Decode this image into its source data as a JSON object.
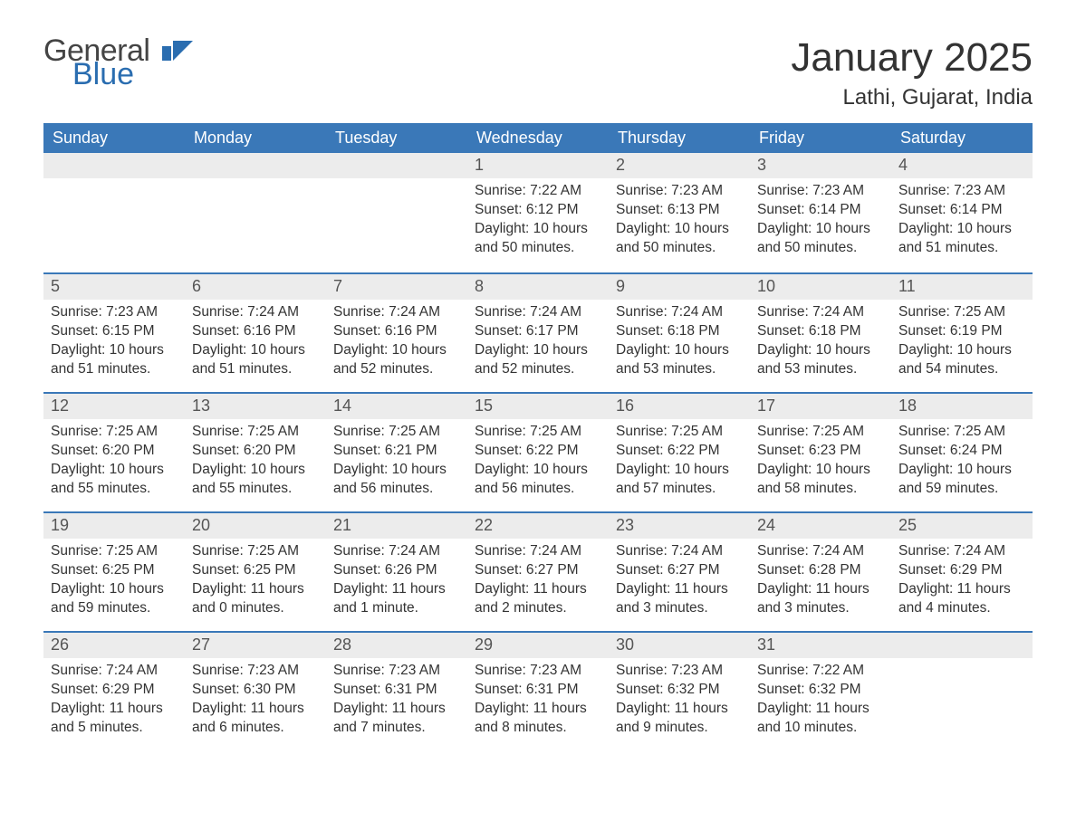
{
  "brand": {
    "line1": "General",
    "line2": "Blue",
    "icon_color": "#2a6db0",
    "text_gray": "#444444"
  },
  "title": "January 2025",
  "location": "Lathi, Gujarat, India",
  "colors": {
    "header_bg": "#3a78b8",
    "header_text": "#ffffff",
    "daybar_bg": "#ececec",
    "daybar_border": "#3a78b8",
    "body_text": "#333333",
    "daynum_text": "#555555",
    "page_bg": "#ffffff"
  },
  "weekdays": [
    "Sunday",
    "Monday",
    "Tuesday",
    "Wednesday",
    "Thursday",
    "Friday",
    "Saturday"
  ],
  "weeks": [
    [
      {
        "n": "",
        "sr": "",
        "ss": "",
        "dl": ""
      },
      {
        "n": "",
        "sr": "",
        "ss": "",
        "dl": ""
      },
      {
        "n": "",
        "sr": "",
        "ss": "",
        "dl": ""
      },
      {
        "n": "1",
        "sr": "Sunrise: 7:22 AM",
        "ss": "Sunset: 6:12 PM",
        "dl": "Daylight: 10 hours and 50 minutes."
      },
      {
        "n": "2",
        "sr": "Sunrise: 7:23 AM",
        "ss": "Sunset: 6:13 PM",
        "dl": "Daylight: 10 hours and 50 minutes."
      },
      {
        "n": "3",
        "sr": "Sunrise: 7:23 AM",
        "ss": "Sunset: 6:14 PM",
        "dl": "Daylight: 10 hours and 50 minutes."
      },
      {
        "n": "4",
        "sr": "Sunrise: 7:23 AM",
        "ss": "Sunset: 6:14 PM",
        "dl": "Daylight: 10 hours and 51 minutes."
      }
    ],
    [
      {
        "n": "5",
        "sr": "Sunrise: 7:23 AM",
        "ss": "Sunset: 6:15 PM",
        "dl": "Daylight: 10 hours and 51 minutes."
      },
      {
        "n": "6",
        "sr": "Sunrise: 7:24 AM",
        "ss": "Sunset: 6:16 PM",
        "dl": "Daylight: 10 hours and 51 minutes."
      },
      {
        "n": "7",
        "sr": "Sunrise: 7:24 AM",
        "ss": "Sunset: 6:16 PM",
        "dl": "Daylight: 10 hours and 52 minutes."
      },
      {
        "n": "8",
        "sr": "Sunrise: 7:24 AM",
        "ss": "Sunset: 6:17 PM",
        "dl": "Daylight: 10 hours and 52 minutes."
      },
      {
        "n": "9",
        "sr": "Sunrise: 7:24 AM",
        "ss": "Sunset: 6:18 PM",
        "dl": "Daylight: 10 hours and 53 minutes."
      },
      {
        "n": "10",
        "sr": "Sunrise: 7:24 AM",
        "ss": "Sunset: 6:18 PM",
        "dl": "Daylight: 10 hours and 53 minutes."
      },
      {
        "n": "11",
        "sr": "Sunrise: 7:25 AM",
        "ss": "Sunset: 6:19 PM",
        "dl": "Daylight: 10 hours and 54 minutes."
      }
    ],
    [
      {
        "n": "12",
        "sr": "Sunrise: 7:25 AM",
        "ss": "Sunset: 6:20 PM",
        "dl": "Daylight: 10 hours and 55 minutes."
      },
      {
        "n": "13",
        "sr": "Sunrise: 7:25 AM",
        "ss": "Sunset: 6:20 PM",
        "dl": "Daylight: 10 hours and 55 minutes."
      },
      {
        "n": "14",
        "sr": "Sunrise: 7:25 AM",
        "ss": "Sunset: 6:21 PM",
        "dl": "Daylight: 10 hours and 56 minutes."
      },
      {
        "n": "15",
        "sr": "Sunrise: 7:25 AM",
        "ss": "Sunset: 6:22 PM",
        "dl": "Daylight: 10 hours and 56 minutes."
      },
      {
        "n": "16",
        "sr": "Sunrise: 7:25 AM",
        "ss": "Sunset: 6:22 PM",
        "dl": "Daylight: 10 hours and 57 minutes."
      },
      {
        "n": "17",
        "sr": "Sunrise: 7:25 AM",
        "ss": "Sunset: 6:23 PM",
        "dl": "Daylight: 10 hours and 58 minutes."
      },
      {
        "n": "18",
        "sr": "Sunrise: 7:25 AM",
        "ss": "Sunset: 6:24 PM",
        "dl": "Daylight: 10 hours and 59 minutes."
      }
    ],
    [
      {
        "n": "19",
        "sr": "Sunrise: 7:25 AM",
        "ss": "Sunset: 6:25 PM",
        "dl": "Daylight: 10 hours and 59 minutes."
      },
      {
        "n": "20",
        "sr": "Sunrise: 7:25 AM",
        "ss": "Sunset: 6:25 PM",
        "dl": "Daylight: 11 hours and 0 minutes."
      },
      {
        "n": "21",
        "sr": "Sunrise: 7:24 AM",
        "ss": "Sunset: 6:26 PM",
        "dl": "Daylight: 11 hours and 1 minute."
      },
      {
        "n": "22",
        "sr": "Sunrise: 7:24 AM",
        "ss": "Sunset: 6:27 PM",
        "dl": "Daylight: 11 hours and 2 minutes."
      },
      {
        "n": "23",
        "sr": "Sunrise: 7:24 AM",
        "ss": "Sunset: 6:27 PM",
        "dl": "Daylight: 11 hours and 3 minutes."
      },
      {
        "n": "24",
        "sr": "Sunrise: 7:24 AM",
        "ss": "Sunset: 6:28 PM",
        "dl": "Daylight: 11 hours and 3 minutes."
      },
      {
        "n": "25",
        "sr": "Sunrise: 7:24 AM",
        "ss": "Sunset: 6:29 PM",
        "dl": "Daylight: 11 hours and 4 minutes."
      }
    ],
    [
      {
        "n": "26",
        "sr": "Sunrise: 7:24 AM",
        "ss": "Sunset: 6:29 PM",
        "dl": "Daylight: 11 hours and 5 minutes."
      },
      {
        "n": "27",
        "sr": "Sunrise: 7:23 AM",
        "ss": "Sunset: 6:30 PM",
        "dl": "Daylight: 11 hours and 6 minutes."
      },
      {
        "n": "28",
        "sr": "Sunrise: 7:23 AM",
        "ss": "Sunset: 6:31 PM",
        "dl": "Daylight: 11 hours and 7 minutes."
      },
      {
        "n": "29",
        "sr": "Sunrise: 7:23 AM",
        "ss": "Sunset: 6:31 PM",
        "dl": "Daylight: 11 hours and 8 minutes."
      },
      {
        "n": "30",
        "sr": "Sunrise: 7:23 AM",
        "ss": "Sunset: 6:32 PM",
        "dl": "Daylight: 11 hours and 9 minutes."
      },
      {
        "n": "31",
        "sr": "Sunrise: 7:22 AM",
        "ss": "Sunset: 6:32 PM",
        "dl": "Daylight: 11 hours and 10 minutes."
      },
      {
        "n": "",
        "sr": "",
        "ss": "",
        "dl": ""
      }
    ]
  ]
}
